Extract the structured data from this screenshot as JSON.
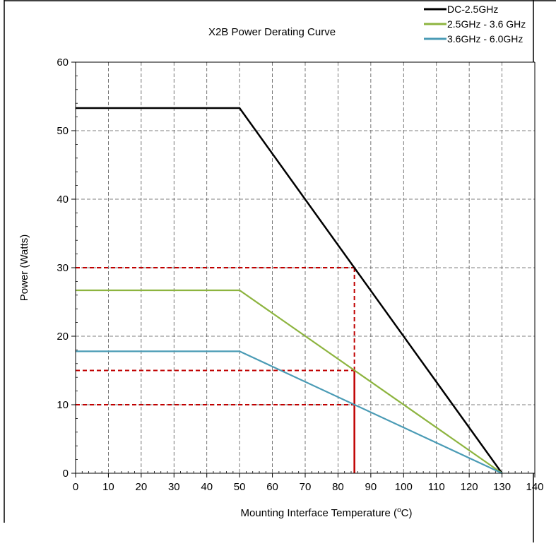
{
  "chart_data": {
    "type": "line",
    "title": "X2B Power Derating Curve",
    "xlabel": "Mounting Interface Temperature (",
    "xlabel_sup": "o",
    "xlabel_tail": "C)",
    "ylabel": "Power (Watts)",
    "xlim": [
      0,
      140
    ],
    "ylim": [
      0,
      60
    ],
    "xticks": [
      0,
      10,
      20,
      30,
      40,
      50,
      60,
      70,
      80,
      90,
      100,
      110,
      120,
      130,
      140
    ],
    "yticks": [
      0,
      10,
      20,
      30,
      40,
      50,
      60
    ],
    "grid": true,
    "legend_position": "top-right",
    "series": [
      {
        "name": "DC-2.5GHz",
        "color": "#000000",
        "x": [
          0,
          50,
          130
        ],
        "y": [
          53.3,
          53.3,
          0
        ]
      },
      {
        "name": "2.5GHz - 3.6 GHz",
        "color": "#8db43f",
        "x": [
          0,
          50,
          130
        ],
        "y": [
          26.7,
          26.7,
          0
        ]
      },
      {
        "name": "3.6GHz - 6.0GHz",
        "color": "#4a9bb5",
        "x": [
          0,
          50,
          130
        ],
        "y": [
          17.8,
          17.8,
          0
        ]
      }
    ],
    "reference_lines": {
      "color": "#c00000",
      "x": 85,
      "y_values": [
        30,
        15,
        10
      ]
    }
  }
}
